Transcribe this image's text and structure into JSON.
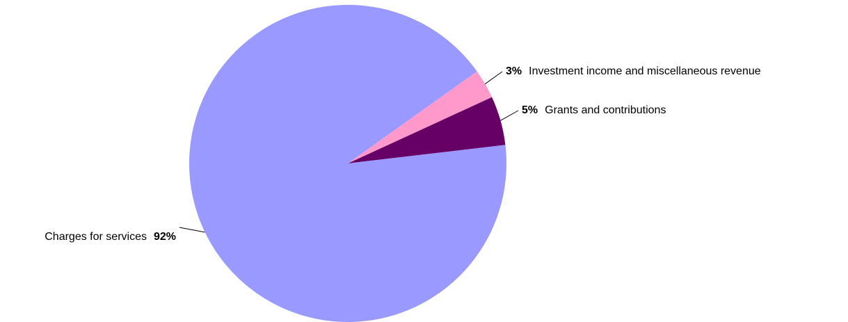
{
  "chart_data": {
    "type": "pie",
    "categories": [
      "Investment income and miscellaneous revenue",
      "Grants and contributions",
      "Charges for services"
    ],
    "values": [
      3,
      5,
      92
    ],
    "value_labels": [
      "3%",
      "5%",
      "92%"
    ],
    "colors": [
      "#ff99cc",
      "#660066",
      "#9999ff"
    ]
  }
}
